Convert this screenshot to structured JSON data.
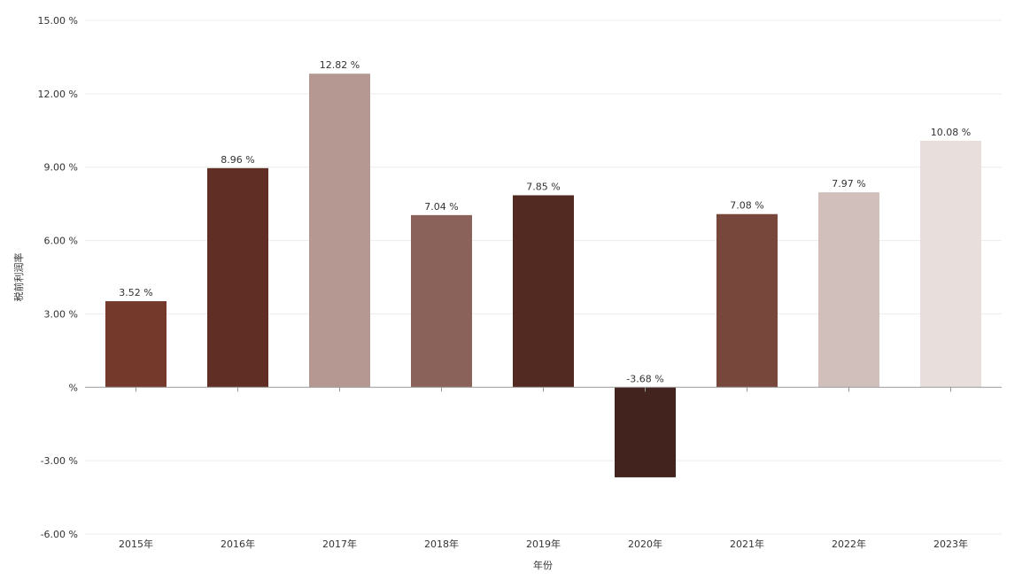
{
  "chart_data": {
    "type": "bar",
    "title": "",
    "xlabel": "年份",
    "ylabel": "税前利润率",
    "categories": [
      "2015年",
      "2016年",
      "2017年",
      "2018年",
      "2019年",
      "2020年",
      "2021年",
      "2022年",
      "2023年"
    ],
    "series": [
      {
        "values": [
          3.52,
          8.96,
          12.82,
          7.04,
          7.85,
          -3.68,
          7.08,
          7.97,
          10.08
        ]
      }
    ],
    "data_labels": [
      "3.52 %",
      "8.96 %",
      "12.82 %",
      "7.04 %",
      "7.85 %",
      "-3.68 %",
      "7.08 %",
      "7.97 %",
      "10.08 %"
    ],
    "bar_colors": [
      "#74392b",
      "#602e24",
      "#b59891",
      "#8b625a",
      "#522a22",
      "#43231d",
      "#78473c",
      "#d1bfbc",
      "#e8dfdd"
    ],
    "ylim": [
      -6,
      15
    ],
    "yticks": [
      -6,
      -3,
      0,
      3,
      6,
      9,
      12,
      15
    ],
    "ytick_labels": [
      "-6.00 %",
      "-3.00 %",
      "%",
      "3.00 %",
      "6.00 %",
      "9.00 %",
      "12.00 %",
      "15.00 %"
    ],
    "grid": true,
    "legend": "none",
    "colors": {
      "grid": "#ececec",
      "zero_axis": "#999999",
      "text": "#333333"
    }
  }
}
